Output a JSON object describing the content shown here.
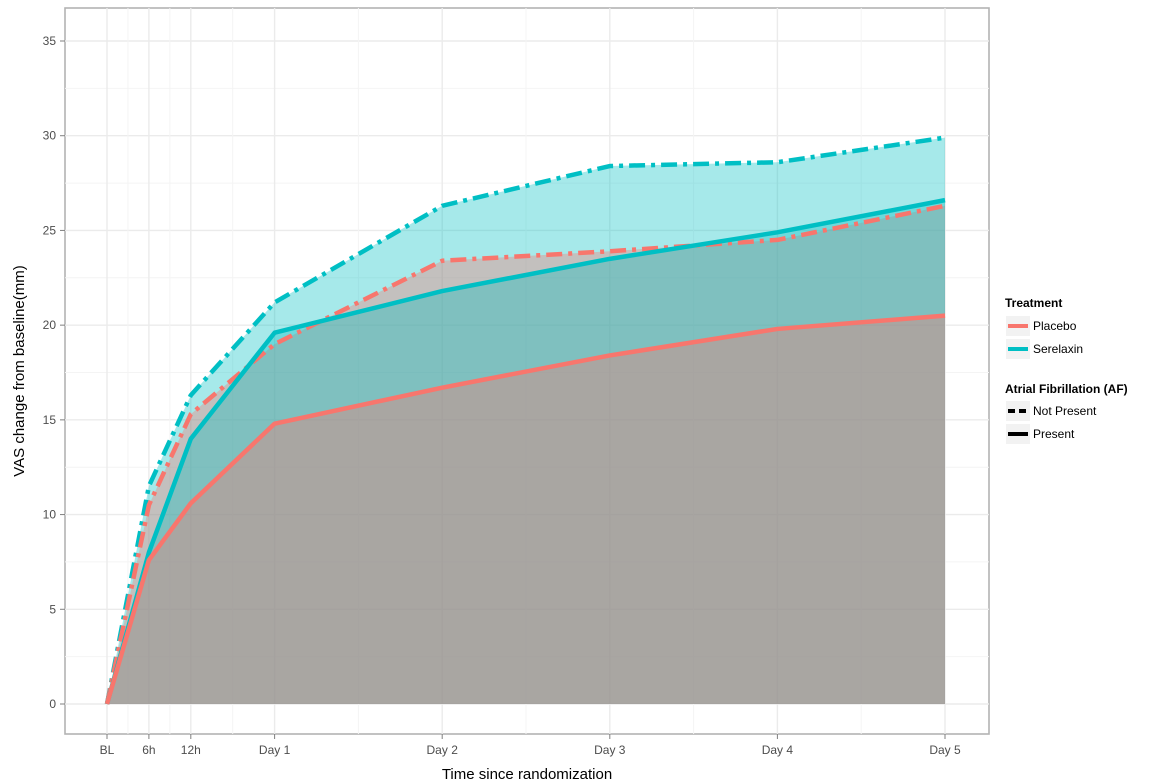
{
  "chart_data": {
    "type": "area",
    "title": "",
    "xlabel": "Time since randomization",
    "ylabel": "VAS change from baseline(mm)",
    "x_ticks": [
      "BL",
      "6h",
      "12h",
      "Day 1",
      "Day 2",
      "Day 3",
      "Day 4",
      "Day 5"
    ],
    "x_tick_hours": [
      0,
      6,
      12,
      24,
      48,
      72,
      96,
      120
    ],
    "ylim": [
      -1.5,
      36
    ],
    "y_ticks": [
      0,
      5,
      10,
      15,
      20,
      25,
      30,
      35
    ],
    "grid": true,
    "legend_position": "right",
    "legend": {
      "treatment_title": "Treatment",
      "treatment_items": [
        {
          "label": "Placebo",
          "color": "#f8766d"
        },
        {
          "label": "Serelaxin",
          "color": "#00bfc4"
        }
      ],
      "af_title": "Atrial Fibrillation (AF)",
      "af_items": [
        {
          "label": "Not Present",
          "linetype": "dashed"
        },
        {
          "label": "Present",
          "linetype": "solid"
        }
      ]
    },
    "series": [
      {
        "treatment": "Serelaxin",
        "af": "Not Present",
        "color": "#00bfc4",
        "dashed": true,
        "x": [
          0,
          6,
          12,
          24,
          48,
          72,
          96,
          120
        ],
        "y": [
          0,
          11.5,
          16.3,
          21.2,
          26.3,
          28.4,
          28.6,
          29.9
        ]
      },
      {
        "treatment": "Placebo",
        "af": "Not Present",
        "color": "#f8766d",
        "dashed": true,
        "x": [
          0,
          6,
          12,
          24,
          48,
          72,
          96,
          120
        ],
        "y": [
          0,
          10.5,
          15.3,
          19.0,
          23.4,
          23.9,
          24.5,
          26.3
        ]
      },
      {
        "treatment": "Serelaxin",
        "af": "Present",
        "color": "#00bfc4",
        "dashed": false,
        "x": [
          0,
          6,
          12,
          24,
          48,
          72,
          96,
          120
        ],
        "y": [
          0,
          8.0,
          14.0,
          19.6,
          21.8,
          23.5,
          24.9,
          26.6
        ]
      },
      {
        "treatment": "Placebo",
        "af": "Present",
        "color": "#f8766d",
        "dashed": false,
        "x": [
          0,
          6,
          12,
          24,
          48,
          72,
          96,
          120
        ],
        "y": [
          0,
          7.6,
          10.6,
          14.8,
          16.7,
          18.4,
          19.8,
          20.5
        ]
      }
    ]
  }
}
